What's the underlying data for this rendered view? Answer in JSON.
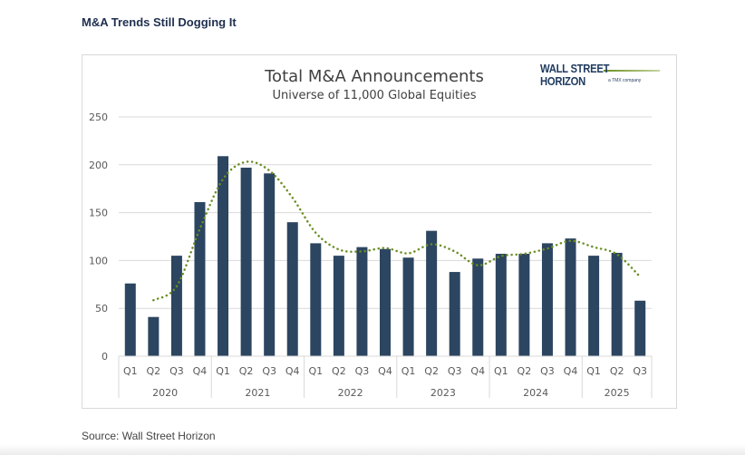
{
  "page": {
    "title": "M&A Trends Still Dogging It",
    "source": "Source: Wall Street Horizon"
  },
  "logo": {
    "main": "WALL STREET HORIZON",
    "sub": "a TMX company"
  },
  "chart_data": {
    "type": "bar",
    "title": "Total M&A Announcements",
    "subtitle": "Universe of 11,000 Global Equities",
    "xlabel": "",
    "ylabel": "",
    "ylim": [
      0,
      250
    ],
    "yticks": [
      0,
      50,
      100,
      150,
      200,
      250
    ],
    "grid": true,
    "legend": "none",
    "categories": [
      "Q1",
      "Q2",
      "Q3",
      "Q4",
      "Q1",
      "Q2",
      "Q3",
      "Q4",
      "Q1",
      "Q2",
      "Q3",
      "Q4",
      "Q1",
      "Q2",
      "Q3",
      "Q4",
      "Q1",
      "Q2",
      "Q3",
      "Q4",
      "Q1",
      "Q2",
      "Q3"
    ],
    "years": [
      {
        "label": "2020",
        "quarters": 4
      },
      {
        "label": "2021",
        "quarters": 4
      },
      {
        "label": "2022",
        "quarters": 4
      },
      {
        "label": "2023",
        "quarters": 4
      },
      {
        "label": "2024",
        "quarters": 4
      },
      {
        "label": "2025",
        "quarters": 3
      }
    ],
    "values": [
      76,
      41,
      105,
      161,
      209,
      197,
      191,
      140,
      118,
      105,
      114,
      112,
      103,
      131,
      88,
      102,
      107,
      107,
      118,
      123,
      105,
      108,
      58
    ],
    "trendline": {
      "type": "2-period moving average",
      "style": "dotted",
      "values": [
        null,
        58.5,
        73,
        133,
        185,
        203,
        194,
        165.5,
        129,
        111.5,
        109.5,
        113,
        107.5,
        117,
        109.5,
        95,
        104.5,
        107,
        112.5,
        120.5,
        114,
        106.5,
        83
      ]
    },
    "colors": {
      "bar": "#2c4560",
      "trendline": "#6b8e23",
      "grid": "#d9d9d9",
      "text": "#595959"
    }
  }
}
